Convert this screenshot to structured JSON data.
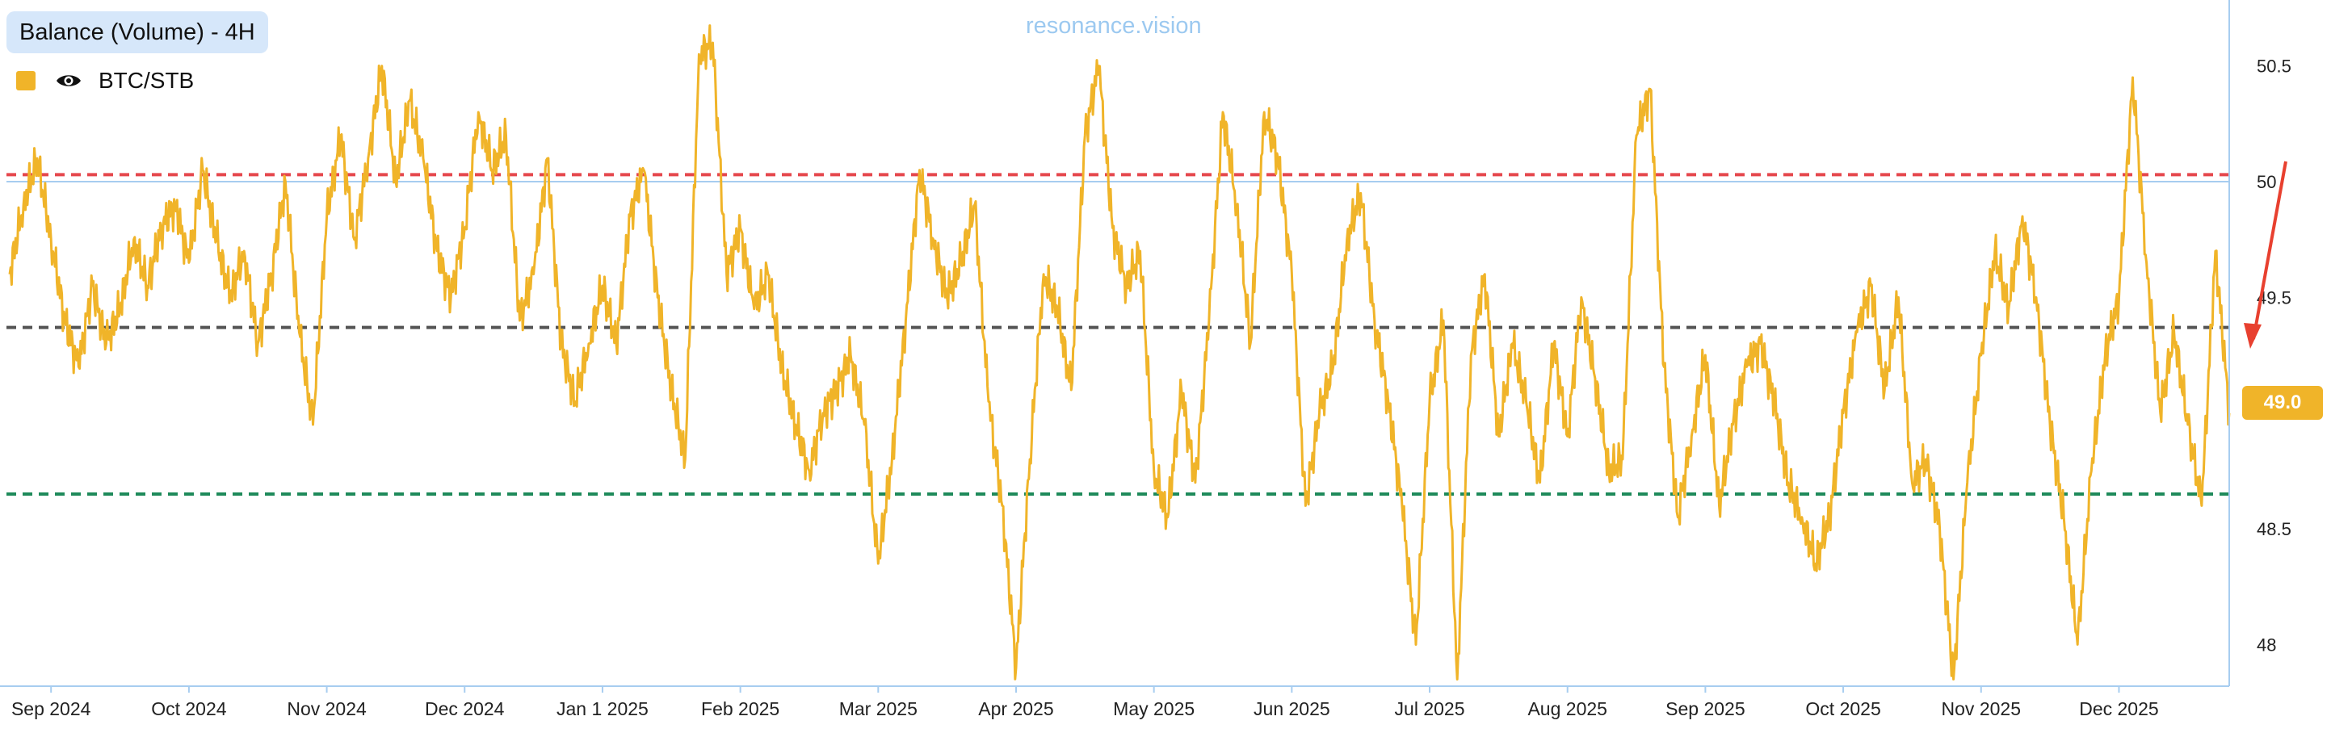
{
  "header": {
    "title": "Balance (Volume) - 4H",
    "watermark": "resonance.vision"
  },
  "legend": {
    "label": "BTC/STB",
    "icon": "eye-icon"
  },
  "colors": {
    "series": "#f0b429",
    "resistance": "#e5484d",
    "mid": "#555555",
    "support": "#1e8a5a",
    "axis": "#a7cdf0",
    "blueline": "#a7cdf0",
    "arrow": "#e8402f"
  },
  "price_badge": "49.0",
  "chart_data": {
    "type": "line",
    "title": "Balance (Volume) - 4H",
    "series_name": "BTC/STB",
    "x_range": [
      0,
      16.1
    ],
    "ylim": [
      47.82,
      50.75
    ],
    "y_ticks": [
      {
        "value": 48,
        "label": "48"
      },
      {
        "value": 48.5,
        "label": "48.5"
      },
      {
        "value": 49,
        "label": "49"
      },
      {
        "value": 49.5,
        "label": "49.5"
      },
      {
        "value": 50,
        "label": "50"
      },
      {
        "value": 50.5,
        "label": "50.5"
      }
    ],
    "x_ticks": [
      {
        "value": 0.3,
        "label": "Sep 2024"
      },
      {
        "value": 1.3,
        "label": "Oct 2024"
      },
      {
        "value": 2.3,
        "label": "Nov 2024"
      },
      {
        "value": 3.3,
        "label": "Dec 2024"
      },
      {
        "value": 4.3,
        "label": "Jan 1 2025"
      },
      {
        "value": 5.3,
        "label": "Feb 2025"
      },
      {
        "value": 6.3,
        "label": "Mar 2025"
      },
      {
        "value": 7.3,
        "label": "Apr 2025"
      },
      {
        "value": 8.3,
        "label": "May 2025"
      },
      {
        "value": 9.3,
        "label": "Jun 2025"
      },
      {
        "value": 10.3,
        "label": "Jul 2025"
      },
      {
        "value": 11.3,
        "label": "Aug 2025"
      },
      {
        "value": 12.3,
        "label": "Sep 2025"
      },
      {
        "value": 13.3,
        "label": "Oct 2025"
      },
      {
        "value": 14.3,
        "label": "Nov 2025"
      },
      {
        "value": 15.3,
        "label": "Dec 2025"
      }
    ],
    "reference_lines": [
      {
        "name": "resistance",
        "value": 50.03,
        "style": "dashed",
        "color_key": "resistance"
      },
      {
        "name": "upper-solid",
        "value": 50.0,
        "style": "solid",
        "color_key": "blueline"
      },
      {
        "name": "mid",
        "value": 49.37,
        "style": "dashed",
        "color_key": "mid"
      },
      {
        "name": "support",
        "value": 48.65,
        "style": "dashed",
        "color_key": "support"
      }
    ],
    "last_value": 49.0,
    "points": [
      [
        0.0,
        49.6
      ],
      [
        0.1,
        49.9
      ],
      [
        0.2,
        50.1
      ],
      [
        0.3,
        49.75
      ],
      [
        0.4,
        49.4
      ],
      [
        0.5,
        49.2
      ],
      [
        0.6,
        49.55
      ],
      [
        0.7,
        49.3
      ],
      [
        0.8,
        49.45
      ],
      [
        0.9,
        49.75
      ],
      [
        1.0,
        49.55
      ],
      [
        1.1,
        49.8
      ],
      [
        1.2,
        49.9
      ],
      [
        1.3,
        49.65
      ],
      [
        1.4,
        50.05
      ],
      [
        1.5,
        49.75
      ],
      [
        1.6,
        49.5
      ],
      [
        1.7,
        49.7
      ],
      [
        1.8,
        49.3
      ],
      [
        1.9,
        49.6
      ],
      [
        2.0,
        50.0
      ],
      [
        2.1,
        49.35
      ],
      [
        2.2,
        48.95
      ],
      [
        2.3,
        49.85
      ],
      [
        2.4,
        50.2
      ],
      [
        2.5,
        49.75
      ],
      [
        2.6,
        50.1
      ],
      [
        2.7,
        50.5
      ],
      [
        2.8,
        50.0
      ],
      [
        2.9,
        50.35
      ],
      [
        3.0,
        50.1
      ],
      [
        3.1,
        49.7
      ],
      [
        3.2,
        49.5
      ],
      [
        3.3,
        49.8
      ],
      [
        3.4,
        50.3
      ],
      [
        3.5,
        50.05
      ],
      [
        3.6,
        50.2
      ],
      [
        3.7,
        49.4
      ],
      [
        3.8,
        49.6
      ],
      [
        3.9,
        50.1
      ],
      [
        4.0,
        49.3
      ],
      [
        4.1,
        49.05
      ],
      [
        4.2,
        49.3
      ],
      [
        4.3,
        49.55
      ],
      [
        4.4,
        49.3
      ],
      [
        4.5,
        49.85
      ],
      [
        4.6,
        50.05
      ],
      [
        4.7,
        49.5
      ],
      [
        4.8,
        49.1
      ],
      [
        4.9,
        48.8
      ],
      [
        5.0,
        50.55
      ],
      [
        5.1,
        50.6
      ],
      [
        5.2,
        49.6
      ],
      [
        5.3,
        49.8
      ],
      [
        5.4,
        49.45
      ],
      [
        5.5,
        49.6
      ],
      [
        5.6,
        49.2
      ],
      [
        5.7,
        48.95
      ],
      [
        5.8,
        48.75
      ],
      [
        5.9,
        49.0
      ],
      [
        6.0,
        49.1
      ],
      [
        6.1,
        49.25
      ],
      [
        6.2,
        48.95
      ],
      [
        6.3,
        48.35
      ],
      [
        6.4,
        48.8
      ],
      [
        6.5,
        49.4
      ],
      [
        6.6,
        50.05
      ],
      [
        6.7,
        49.75
      ],
      [
        6.8,
        49.5
      ],
      [
        6.9,
        49.65
      ],
      [
        7.0,
        49.9
      ],
      [
        7.1,
        49.05
      ],
      [
        7.2,
        48.6
      ],
      [
        7.3,
        47.9
      ],
      [
        7.4,
        48.8
      ],
      [
        7.5,
        49.6
      ],
      [
        7.6,
        49.45
      ],
      [
        7.7,
        49.1
      ],
      [
        7.8,
        50.2
      ],
      [
        7.9,
        50.5
      ],
      [
        8.0,
        49.8
      ],
      [
        8.1,
        49.55
      ],
      [
        8.2,
        49.7
      ],
      [
        8.3,
        48.75
      ],
      [
        8.4,
        48.55
      ],
      [
        8.5,
        49.1
      ],
      [
        8.6,
        48.7
      ],
      [
        8.7,
        49.4
      ],
      [
        8.8,
        50.3
      ],
      [
        8.9,
        49.9
      ],
      [
        9.0,
        49.3
      ],
      [
        9.1,
        50.3
      ],
      [
        9.2,
        50.1
      ],
      [
        9.3,
        49.6
      ],
      [
        9.4,
        48.6
      ],
      [
        9.5,
        49.0
      ],
      [
        9.6,
        49.2
      ],
      [
        9.7,
        49.75
      ],
      [
        9.8,
        49.95
      ],
      [
        9.9,
        49.4
      ],
      [
        10.0,
        49.05
      ],
      [
        10.1,
        48.6
      ],
      [
        10.2,
        48.0
      ],
      [
        10.3,
        49.05
      ],
      [
        10.4,
        49.4
      ],
      [
        10.5,
        47.85
      ],
      [
        10.6,
        49.25
      ],
      [
        10.7,
        49.6
      ],
      [
        10.8,
        48.9
      ],
      [
        10.9,
        49.3
      ],
      [
        11.0,
        49.05
      ],
      [
        11.1,
        48.7
      ],
      [
        11.2,
        49.3
      ],
      [
        11.3,
        48.9
      ],
      [
        11.4,
        49.5
      ],
      [
        11.5,
        49.15
      ],
      [
        11.6,
        48.75
      ],
      [
        11.7,
        48.8
      ],
      [
        11.8,
        50.2
      ],
      [
        11.9,
        50.4
      ],
      [
        12.0,
        49.2
      ],
      [
        12.1,
        48.55
      ],
      [
        12.2,
        48.9
      ],
      [
        12.3,
        49.25
      ],
      [
        12.4,
        48.6
      ],
      [
        12.5,
        48.95
      ],
      [
        12.6,
        49.2
      ],
      [
        12.7,
        49.3
      ],
      [
        12.8,
        49.05
      ],
      [
        12.9,
        48.7
      ],
      [
        13.0,
        48.55
      ],
      [
        13.1,
        48.35
      ],
      [
        13.2,
        48.55
      ],
      [
        13.3,
        49.0
      ],
      [
        13.4,
        49.35
      ],
      [
        13.5,
        49.55
      ],
      [
        13.6,
        49.1
      ],
      [
        13.7,
        49.5
      ],
      [
        13.8,
        48.7
      ],
      [
        13.9,
        48.8
      ],
      [
        14.0,
        48.5
      ],
      [
        14.1,
        47.85
      ],
      [
        14.2,
        48.7
      ],
      [
        14.3,
        49.25
      ],
      [
        14.4,
        49.7
      ],
      [
        14.5,
        49.45
      ],
      [
        14.6,
        49.85
      ],
      [
        14.7,
        49.5
      ],
      [
        14.8,
        48.95
      ],
      [
        14.9,
        48.55
      ],
      [
        15.0,
        48.0
      ],
      [
        15.1,
        48.75
      ],
      [
        15.2,
        49.25
      ],
      [
        15.3,
        49.5
      ],
      [
        15.4,
        50.45
      ],
      [
        15.5,
        49.65
      ],
      [
        15.6,
        49.0
      ],
      [
        15.7,
        49.35
      ],
      [
        15.8,
        48.95
      ],
      [
        15.9,
        48.6
      ],
      [
        16.0,
        49.7
      ],
      [
        16.1,
        49.0
      ]
    ]
  }
}
